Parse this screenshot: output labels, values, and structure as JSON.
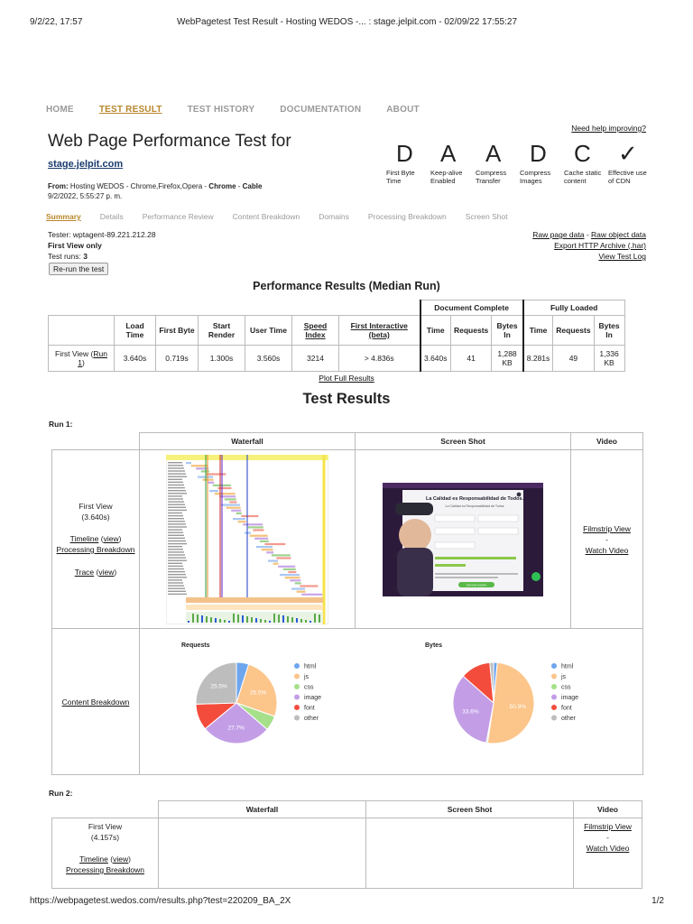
{
  "print": {
    "datetime": "9/2/22, 17:57",
    "doc_title": "WebPagetest Test Result - Hosting WEDOS -... : stage.jelpit.com - 02/09/22 17:55:27",
    "url": "https://webpagetest.wedos.com/results.php?test=220209_BA_2X",
    "page": "1/2"
  },
  "nav": [
    "HOME",
    "TEST RESULT",
    "TEST HISTORY",
    "DOCUMENTATION",
    "ABOUT"
  ],
  "help_link": "Need help improving?",
  "title": "Web Page Performance Test for",
  "site": "stage.jelpit.com",
  "from_label": "From:",
  "from_value": "Hosting WEDOS - Chrome,Firefox,Opera -",
  "browser": "Chrome",
  "dash": " - ",
  "connection": "Cable",
  "date": "9/2/2022, 5:55:27 p. m.",
  "grades": [
    {
      "letter": "D",
      "label": "First Byte Time"
    },
    {
      "letter": "A",
      "label": "Keep-alive Enabled"
    },
    {
      "letter": "A",
      "label": "Compress Transfer"
    },
    {
      "letter": "D",
      "label": "Compress Images"
    },
    {
      "letter": "C",
      "label": "Cache static content"
    },
    {
      "letter": "✓",
      "label": "Effective use of CDN"
    }
  ],
  "subnav": [
    "Summary",
    "Details",
    "Performance Review",
    "Content Breakdown",
    "Domains",
    "Processing Breakdown",
    "Screen Shot"
  ],
  "tester": "Tester: wptagent-89.221.212.28",
  "first_view_only": "First View only",
  "test_runs_label": "Test runs: ",
  "test_runs": "3",
  "rerun": "Re-run the test",
  "links": {
    "raw_page": "Raw page data",
    "sep": " - ",
    "raw_object": "Raw object data",
    "export_har": "Export HTTP Archive (.har)",
    "view_log": "View Test Log"
  },
  "perf": {
    "title": "Performance Results (Median Run)",
    "group_doc": "Document Complete",
    "group_full": "Fully Loaded",
    "headers": [
      "Load Time",
      "First Byte",
      "Start Render",
      "User Time",
      "Speed Index",
      "First Interactive (beta)",
      "Time",
      "Requests",
      "Bytes In",
      "Time",
      "Requests",
      "Bytes In"
    ],
    "row_label": "First View (",
    "row_link": "Run 1",
    "row_label_end": ")",
    "values": [
      "3.640s",
      "0.719s",
      "1.300s",
      "3.560s",
      "3214",
      "> 4.836s",
      "3.640s",
      "41",
      "1,288 KB",
      "8.281s",
      "49",
      "1,336 KB"
    ]
  },
  "plot_full": "Plot Full Results",
  "test_results_title": "Test Results",
  "run1": {
    "label": "Run 1:",
    "headers": [
      "Waterfall",
      "Screen Shot",
      "Video"
    ],
    "first_view": "First View",
    "first_view_time": "(3.640s)",
    "timeline": "Timeline",
    "view": "view",
    "processing": "Processing Breakdown",
    "trace": "Trace",
    "filmstrip": "Filmstrip View",
    "dash": "-",
    "watch": "Watch Video",
    "content_breakdown": "Content Breakdown",
    "screenshot_heading": "La Calidad es Responsabilidad de Todos.",
    "screenshot_sub": "La Calidad es Responsabilidad de Todos",
    "screenshot_button": "ENVIAR AHORA"
  },
  "chart_data": [
    {
      "type": "pie",
      "title": "Requests",
      "categories": [
        "html",
        "js",
        "css",
        "image",
        "font",
        "other"
      ],
      "values": [
        4.9,
        25.5,
        5.9,
        27.7,
        10.5,
        25.5
      ],
      "labels": [
        "",
        "25.5%",
        "",
        "27.7%",
        "",
        "25.5%"
      ],
      "colors": [
        "#6ea6ee",
        "#fcc58a",
        "#a6e08a",
        "#c39ee7",
        "#f44c3c",
        "#bdbdbd"
      ],
      "legend": "right"
    },
    {
      "type": "pie",
      "title": "Bytes",
      "categories": [
        "html",
        "js",
        "css",
        "image",
        "font",
        "other"
      ],
      "values": [
        1.5,
        50.9,
        0.5,
        33.6,
        12.0,
        1.5
      ],
      "labels": [
        "",
        "50.9%",
        "",
        "33.6%",
        "",
        ""
      ],
      "colors": [
        "#6ea6ee",
        "#fcc58a",
        "#a6e08a",
        "#c39ee7",
        "#f44c3c",
        "#bdbdbd"
      ],
      "legend": "right"
    }
  ],
  "run2": {
    "label": "Run 2:",
    "headers": [
      "Waterfall",
      "Screen Shot",
      "Video"
    ],
    "first_view": "First View",
    "first_view_time": "(4.157s)",
    "timeline": "Timeline",
    "view": "view",
    "processing": "Processing Breakdown",
    "filmstrip": "Filmstrip View",
    "dash": "-",
    "watch": "Watch Video"
  }
}
